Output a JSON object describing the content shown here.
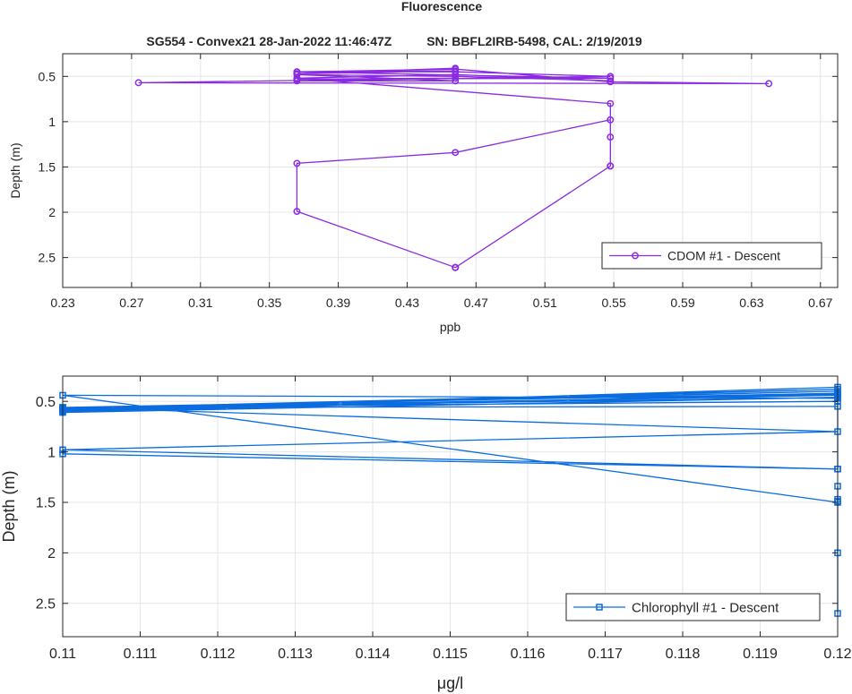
{
  "figure": {
    "title": "Fluorescence",
    "subtitle": "SG554 - Convex21 28-Jan-2022 11:46:47Z          SN: BBFL2IRB-5498, CAL: 2/19/2019"
  },
  "chart_data": [
    {
      "type": "line",
      "xlabel": "ppb",
      "ylabel": "Depth (m)",
      "xlim": [
        0.23,
        0.68
      ],
      "ylim": [
        0.25,
        2.83
      ],
      "y_reversed": true,
      "grid": true,
      "xticks": [
        0.23,
        0.27,
        0.31,
        0.35,
        0.39,
        0.43,
        0.47,
        0.51,
        0.55,
        0.59,
        0.63,
        0.67
      ],
      "xtick_labels": [
        "0.23",
        "0.27",
        "0.31",
        "0.35",
        "0.39",
        "0.43",
        "0.47",
        "0.51",
        "0.55",
        "0.59",
        "0.63",
        "0.67"
      ],
      "yticks": [
        0.5,
        1,
        1.5,
        2,
        2.5
      ],
      "ytick_labels": [
        "0.5",
        "1",
        "1.5",
        "2",
        "2.5"
      ],
      "legend": {
        "label": "CDOM #1 - Descent",
        "location": "bottom-right"
      },
      "series": [
        {
          "name": "CDOM #1 - Descent",
          "color": "#8a2be2",
          "marker": "circle",
          "x": [
            0.458,
            0.458,
            0.548,
            0.548,
            0.548,
            0.458,
            0.366,
            0.366,
            0.458,
            0.548,
            0.548,
            0.366,
            0.458,
            0.548,
            0.458,
            0.366,
            0.458,
            0.366,
            0.548,
            0.458,
            0.366,
            0.548,
            0.366,
            0.458,
            0.274,
            0.64,
            0.548,
            0.458,
            0.366,
            0.458,
            0.366,
            0.458
          ],
          "y": [
            2.61,
            2.61,
            1.49,
            1.17,
            0.98,
            1.34,
            1.46,
            1.99,
            2.61,
            1.49,
            0.8,
            0.52,
            0.48,
            0.55,
            0.5,
            0.48,
            0.55,
            0.55,
            0.5,
            0.45,
            0.45,
            0.52,
            0.53,
            0.52,
            0.57,
            0.58,
            0.56,
            0.42,
            0.45,
            0.44,
            0.47,
            0.41
          ]
        }
      ]
    },
    {
      "type": "line",
      "xlabel": "μg/l",
      "ylabel": "Depth (m)",
      "xlim": [
        0.11,
        0.12
      ],
      "ylim": [
        0.25,
        2.83
      ],
      "y_reversed": true,
      "grid": true,
      "xticks": [
        0.11,
        0.111,
        0.112,
        0.113,
        0.114,
        0.115,
        0.116,
        0.117,
        0.118,
        0.119,
        0.12
      ],
      "xtick_labels": [
        "0.11",
        "0.111",
        "0.112",
        "0.113",
        "0.114",
        "0.115",
        "0.116",
        "0.117",
        "0.118",
        "0.119",
        "0.12"
      ],
      "yticks": [
        0.5,
        1,
        1.5,
        2,
        2.5
      ],
      "ytick_labels": [
        "0.5",
        "1",
        "1.5",
        "2",
        "2.5"
      ],
      "legend": {
        "label": "Chlorophyll #1 - Descent",
        "location": "bottom-right"
      },
      "series": [
        {
          "name": "Chlorophyll #1 - Descent",
          "color": "#0a6cde",
          "marker": "square",
          "x": [
            0.12,
            0.12,
            0.12,
            0.12,
            0.12,
            0.12,
            0.11,
            0.12,
            0.12,
            0.11,
            0.12,
            0.12,
            0.11,
            0.12,
            0.11,
            0.12,
            0.11,
            0.12,
            0.11,
            0.12,
            0.11,
            0.12,
            0.11,
            0.12,
            0.11,
            0.12,
            0.11,
            0.12,
            0.11,
            0.12
          ],
          "y": [
            2.6,
            2.0,
            1.47,
            1.34,
            1.49,
            1.5,
            0.44,
            0.47,
            0.55,
            0.56,
            0.5,
            1.17,
            1.02,
            1.17,
            0.98,
            0.8,
            0.56,
            0.42,
            0.61,
            0.46,
            0.57,
            0.4,
            0.58,
            0.44,
            0.57,
            0.38,
            0.59,
            0.43,
            0.6,
            0.36
          ]
        }
      ]
    }
  ]
}
